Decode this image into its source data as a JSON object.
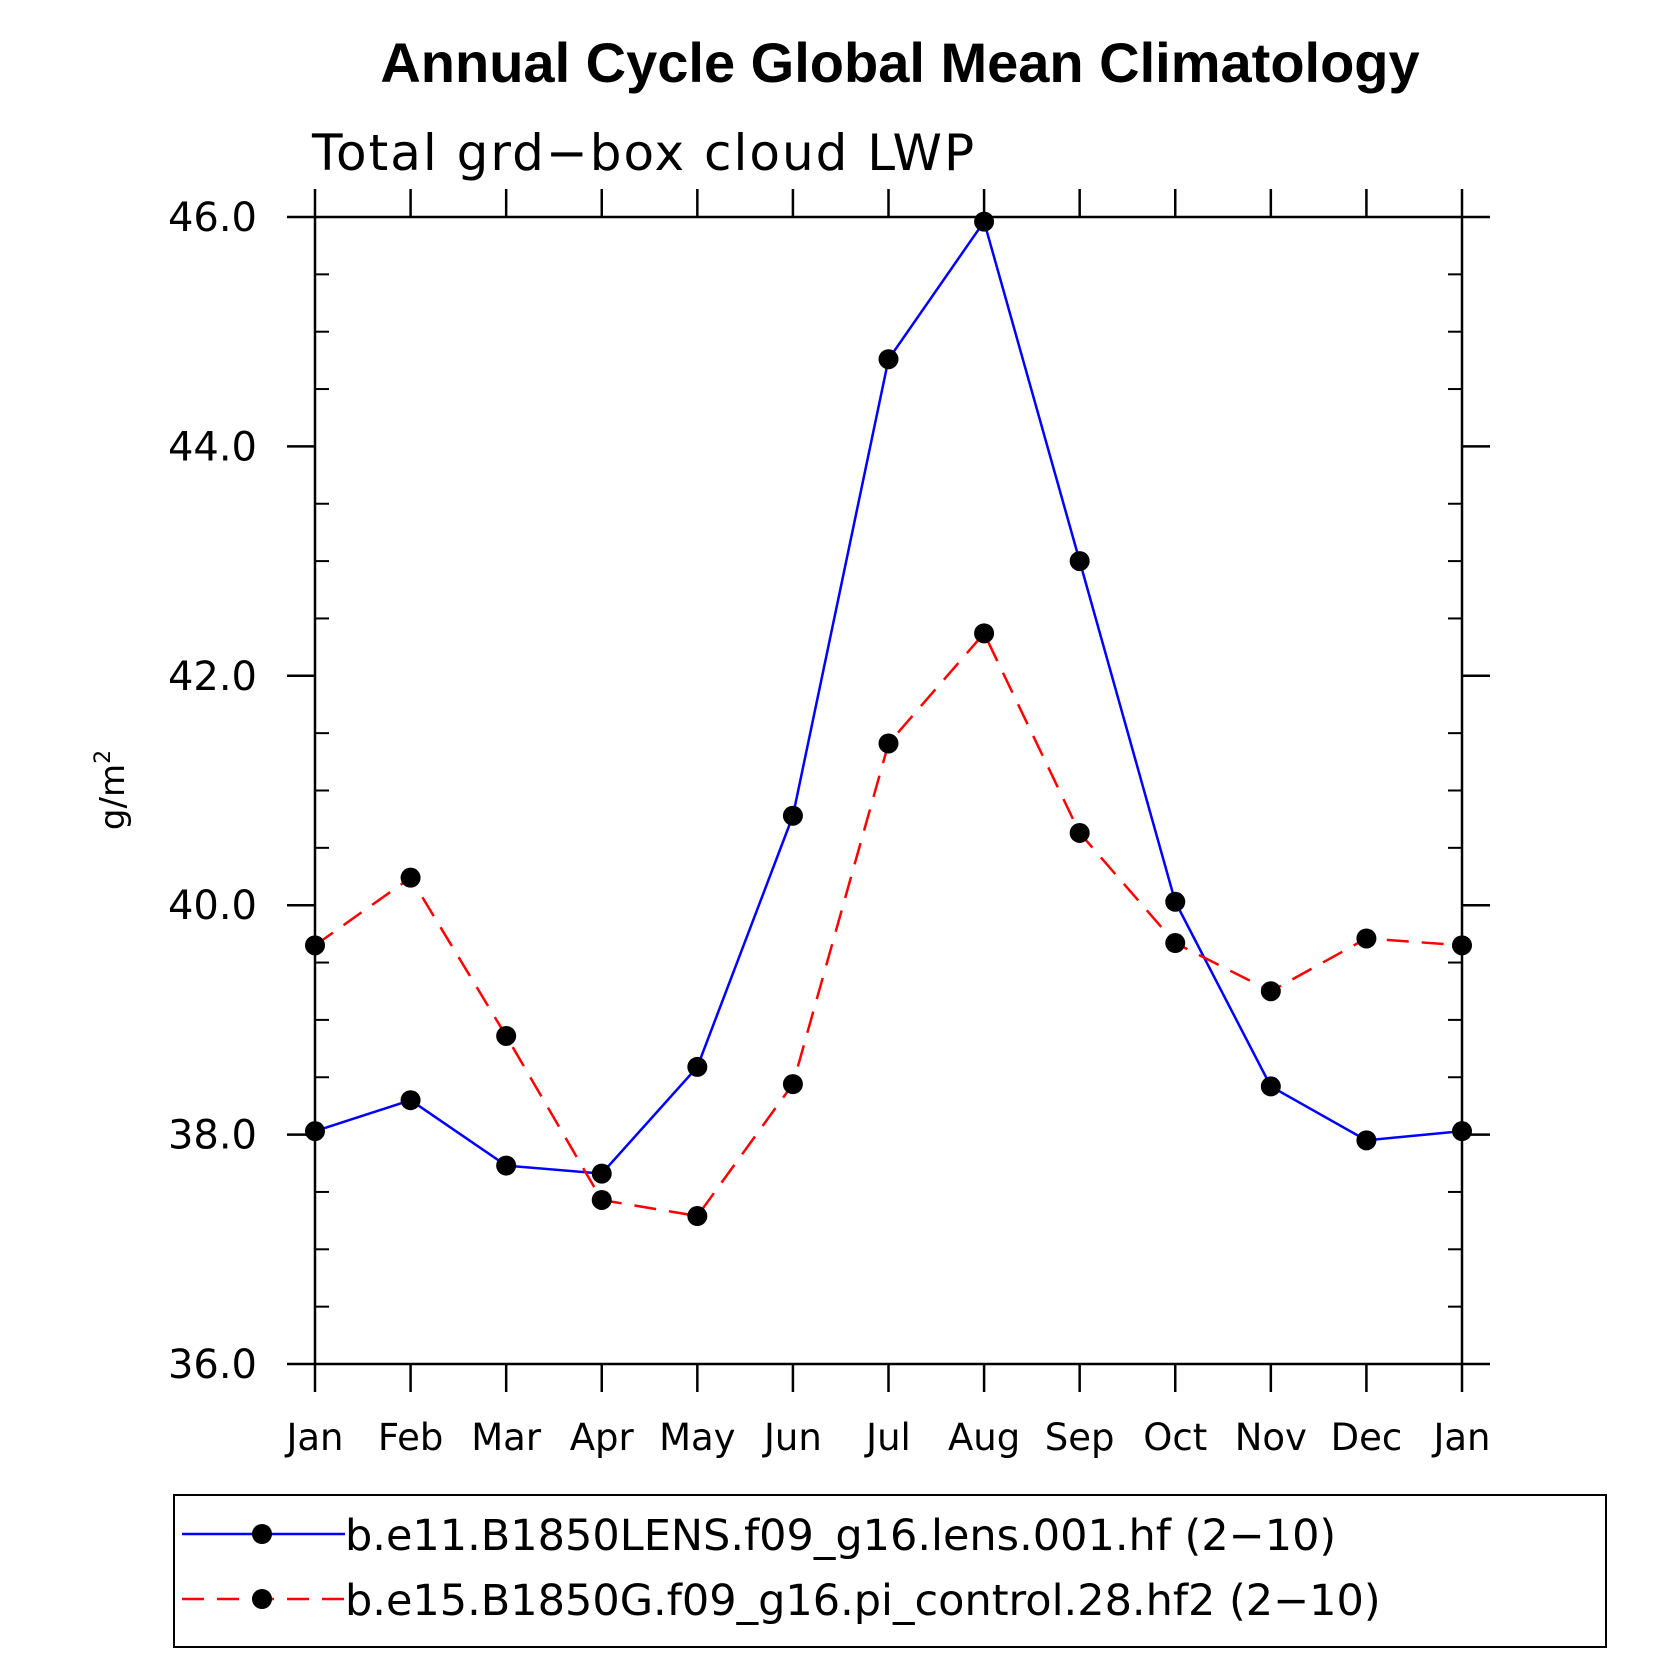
{
  "chart_data": {
    "type": "line",
    "title": "Annual Cycle Global Mean Climatology",
    "subtitle": "Total grd−box cloud LWP",
    "ylabel": "g/m",
    "ylabel_sup": "2",
    "xlabel": "",
    "categories": [
      "Jan",
      "Feb",
      "Mar",
      "Apr",
      "May",
      "Jun",
      "Jul",
      "Aug",
      "Sep",
      "Oct",
      "Nov",
      "Dec",
      "Jan"
    ],
    "ylim": [
      36.0,
      46.0
    ],
    "yticks": [
      "36.0",
      "38.0",
      "40.0",
      "42.0",
      "44.0",
      "46.0"
    ],
    "grid": false,
    "legend_position": "bottom",
    "series": [
      {
        "name": "b.e11.B1850LENS.f09_g16.lens.001.hf (2−10)",
        "color": "#0000ff",
        "dash": "solid",
        "values": [
          38.03,
          38.3,
          37.73,
          37.66,
          38.59,
          40.78,
          44.76,
          45.96,
          43.0,
          40.03,
          38.42,
          37.95,
          38.03
        ]
      },
      {
        "name": "b.e15.B1850G.f09_g16.pi_control.28.hf2 (2−10)",
        "color": "#ff0000",
        "dash": "dashed",
        "values": [
          39.65,
          40.24,
          38.86,
          37.43,
          37.29,
          38.44,
          41.41,
          42.37,
          40.63,
          39.67,
          39.25,
          39.71,
          39.65
        ]
      }
    ]
  }
}
